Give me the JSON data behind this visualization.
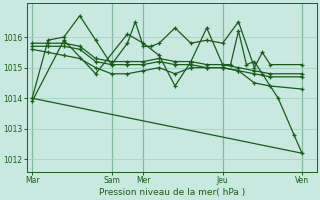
{
  "bg_color": "#c8e8e0",
  "line_color": "#1a5c1a",
  "grid_color": "#9ecfbf",
  "xlabel": "Pression niveau de la mer( hPa )",
  "ylim": [
    1011.6,
    1017.1
  ],
  "yticks": [
    1012,
    1013,
    1014,
    1015,
    1016
  ],
  "xtick_labels": [
    "Mar",
    "Sam",
    "Mer",
    "Jeu",
    "Ven"
  ],
  "xtick_positions": [
    0,
    60,
    84,
    144,
    204
  ],
  "xlim": [
    -4,
    215
  ],
  "series": [
    {
      "x": [
        0,
        12,
        24,
        36,
        48,
        60,
        72,
        78,
        84,
        90,
        96,
        108,
        120,
        132,
        144,
        156,
        168,
        174,
        180,
        204
      ],
      "y": [
        1014.0,
        1015.9,
        1016.0,
        1016.7,
        1015.9,
        1015.1,
        1015.8,
        1016.5,
        1015.7,
        1015.7,
        1015.8,
        1016.3,
        1015.8,
        1015.9,
        1015.8,
        1016.5,
        1015.0,
        1015.5,
        1015.1,
        1015.1
      ]
    },
    {
      "x": [
        0,
        12,
        24,
        36,
        48,
        60,
        72,
        84,
        96,
        108,
        120,
        132,
        144,
        156,
        168,
        180,
        204
      ],
      "y": [
        1015.8,
        1015.8,
        1015.8,
        1015.7,
        1015.3,
        1015.2,
        1015.2,
        1015.2,
        1015.3,
        1015.2,
        1015.2,
        1015.1,
        1015.1,
        1015.0,
        1014.9,
        1014.8,
        1014.8
      ]
    },
    {
      "x": [
        0,
        12,
        24,
        36,
        48,
        60,
        72,
        84,
        96,
        108,
        120,
        132,
        144,
        156,
        168,
        180,
        204
      ],
      "y": [
        1015.7,
        1015.7,
        1015.7,
        1015.6,
        1015.2,
        1015.1,
        1015.1,
        1015.1,
        1015.2,
        1015.1,
        1015.1,
        1015.0,
        1015.0,
        1014.9,
        1014.8,
        1014.7,
        1014.7
      ]
    },
    {
      "x": [
        0,
        12,
        24,
        36,
        48,
        60,
        72,
        84,
        96,
        108,
        120,
        132,
        144,
        156,
        168,
        180,
        204
      ],
      "y": [
        1015.6,
        1015.5,
        1015.4,
        1015.3,
        1015.0,
        1014.8,
        1014.8,
        1014.9,
        1015.0,
        1014.8,
        1015.0,
        1015.0,
        1015.0,
        1014.9,
        1014.5,
        1014.4,
        1014.3
      ]
    },
    {
      "x": [
        0,
        24,
        48,
        72,
        84,
        96,
        108,
        120,
        132,
        144,
        150,
        156,
        162,
        168,
        174,
        186,
        198,
        204
      ],
      "y": [
        1013.9,
        1015.9,
        1014.8,
        1016.1,
        1015.8,
        1015.4,
        1014.4,
        1015.2,
        1016.3,
        1015.1,
        1015.1,
        1016.2,
        1015.1,
        1015.2,
        1014.8,
        1014.0,
        1012.8,
        1012.2
      ]
    },
    {
      "x": [
        0,
        204
      ],
      "y": [
        1014.0,
        1012.2
      ]
    }
  ]
}
